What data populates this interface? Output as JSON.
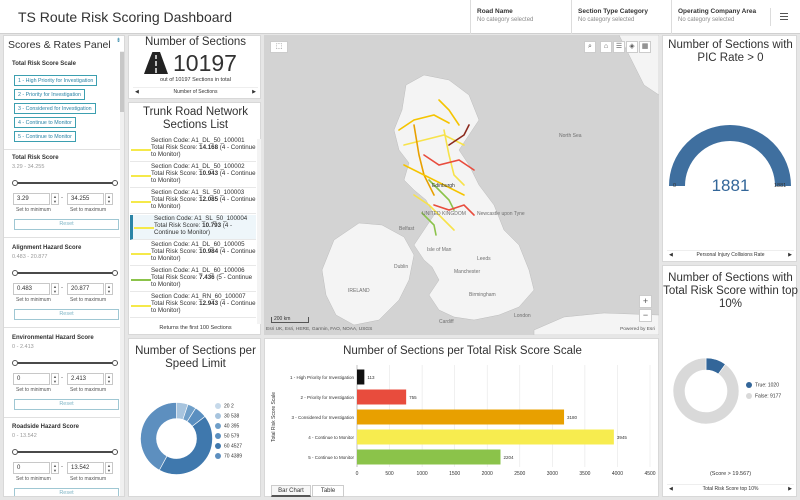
{
  "header": {
    "title": "TS Route Risk Scoring Dashboard",
    "filters": [
      {
        "label": "Road Name",
        "value": "No category selected"
      },
      {
        "label": "Section Type Category",
        "value": "No category selected"
      },
      {
        "label": "Operating Company Area",
        "value": "No category selected"
      }
    ],
    "menu_icon": "hamburger-icon"
  },
  "left_panel": {
    "title": "Scores & Rates Panel",
    "risk_scale": {
      "title": "Total Risk Score Scale",
      "buttons": [
        "1 - High Priority for Investigation",
        "2 - Priority for Investigation",
        "3 - Considered for Investigation",
        "4 - Continue to Monitor",
        "5 - Continue to Monitor"
      ]
    },
    "sliders": [
      {
        "title": "Total Risk Score",
        "range": "3.29 - 34.255",
        "min": "3.29",
        "max": "34.255",
        "set_min": "Set to minimum",
        "set_max": "Set to maximum",
        "reset": "Reset"
      },
      {
        "title": "Alignment Hazard Score",
        "range": "0.483 - 20.877",
        "min": "0.483",
        "max": "20.877",
        "set_min": "Set to minimum",
        "set_max": "Set to maximum",
        "reset": "Reset"
      },
      {
        "title": "Environmental Hazard Score",
        "range": "0 - 2.413",
        "min": "0",
        "max": "2.413",
        "set_min": "Set to minimum",
        "set_max": "Set to maximum",
        "reset": "Reset"
      },
      {
        "title": "Roadside Hazard Score",
        "range": "0 - 13.542",
        "min": "0",
        "max": "13.542",
        "set_min": "Set to minimum",
        "set_max": "Set to maximum",
        "reset": "Reset"
      }
    ]
  },
  "number_indicator": {
    "title": "Number of Sections",
    "value": "10197",
    "subtitle": "out of 10197 Sections in total",
    "nav_label": "Number of Sections"
  },
  "sections_list": {
    "title": "Trunk Road Network Sections List",
    "items": [
      {
        "line1": "Section Code: A1_DL_50_100001",
        "line2a": "Total Risk Score: ",
        "score": "14.168",
        "line2b": " (4 - Continue to Monitor)",
        "color": "#f5e94a"
      },
      {
        "line1": "Section Code: A1_DL_50_100002",
        "line2a": "Total Risk Score: ",
        "score": "10.943",
        "line2b": " (4 - Continue to Monitor)",
        "color": "#f5e94a"
      },
      {
        "line1": "Section Code: A1_SL_50_100003",
        "line2a": "Total Risk Score: ",
        "score": "12.085",
        "line2b": " (4 - Continue to Monitor)",
        "color": "#f5e94a"
      },
      {
        "line1": "Section Code: A1_SL_50_100004",
        "line2a": "Total Risk Score: ",
        "score": "10.793",
        "line2b": " (4 - Continue to Monitor)",
        "color": "#f5e94a"
      },
      {
        "line1": "Section Code: A1_DL_60_100005",
        "line2a": "Total Risk Score: ",
        "score": "10.984",
        "line2b": " (4 - Continue to Monitor)",
        "color": "#f5e94a"
      },
      {
        "line1": "Section Code: A1_DL_60_100006",
        "line2a": "Total Risk Score: ",
        "score": "7.436",
        "line2b": " (5 - Continue to Monitor)",
        "color": "#8bc34a"
      },
      {
        "line1": "Section Code: A1_RN_60_100007",
        "line2a": "Total Risk Score: ",
        "score": "12.943",
        "line2b": " (4 - Continue to Monitor)",
        "color": "#f5e94a"
      }
    ],
    "footer": "Returns the first 100 Sections"
  },
  "map": {
    "labels": [
      "Edinburgh",
      "UNITED KINGDOM",
      "Newcastle upon Tyne",
      "Belfast",
      "Dublin",
      "Leeds",
      "Manchester",
      "Birmingham",
      "London",
      "Cardiff",
      "IRELAND",
      "North Sea",
      "Isle of Man"
    ],
    "scale": "200 km",
    "attribution": "Esri UK, Esri, HERE, Garmin, FAO, NOAA, USGS",
    "powered_by": "Powered by Esri",
    "zoom_in": "+",
    "zoom_out": "−"
  },
  "gauge": {
    "title": "Number of Sections with PIC Rate > 0",
    "value": "1881",
    "min": "0",
    "max": "1881",
    "nav_label": "Personal Injury Collisions Rate"
  },
  "top10": {
    "title": "Number of Sections with Total Risk Score within top 10%",
    "legend": [
      {
        "label": "True: 1020",
        "color": "#336699"
      },
      {
        "label": "False: 9177",
        "color": "#d9d9d9"
      }
    ],
    "subtitle": "(Score > 19.567)",
    "nav_label": "Total Risk Score top 10%"
  },
  "speed": {
    "title": "Number of Sections per Speed Limit",
    "legend": [
      {
        "label": "20 2",
        "color": "#c6d9ea"
      },
      {
        "label": "30 538",
        "color": "#a7c4de"
      },
      {
        "label": "40 395",
        "color": "#6f9fc9"
      },
      {
        "label": "50 579",
        "color": "#5a8fc0"
      },
      {
        "label": "60 4527",
        "color": "#3f78ad"
      },
      {
        "label": "70 4389",
        "color": "#5d8fbf"
      }
    ]
  },
  "bar_chart": {
    "title": "Number of Sections per Total Risk Score Scale",
    "tabs": [
      "Bar Chart",
      "Table"
    ]
  },
  "chart_data": [
    {
      "type": "bar",
      "title": "Number of Sections per Total Risk Score Scale",
      "ylabel": "Total Risk Score Scale",
      "xlabel": "",
      "orientation": "horizontal",
      "categories": [
        "1 - High Priority for Investigation",
        "2 - Priority for Investigation",
        "3 - Considered for Investigation",
        "4 - Continue to Monitor",
        "5 - Continue to Monitor"
      ],
      "values": [
        113,
        755,
        3180,
        3945,
        2204
      ],
      "colors": [
        "#111111",
        "#e84c3d",
        "#e8a000",
        "#f7ec4f",
        "#8bc34a"
      ],
      "xlim": [
        0,
        4500
      ],
      "xticks": [
        "0",
        "500",
        "1000",
        "1500",
        "2000",
        "2500",
        "3000",
        "3500",
        "4000",
        "4500"
      ],
      "grid": true
    },
    {
      "type": "pie",
      "title": "Number of Sections per Speed Limit",
      "categories": [
        "20",
        "30",
        "40",
        "50",
        "60",
        "70"
      ],
      "values": [
        2,
        538,
        395,
        579,
        4527,
        4389
      ],
      "donut": true
    },
    {
      "type": "pie",
      "title": "Number of Sections with Total Risk Score within top 10%",
      "categories": [
        "True",
        "False"
      ],
      "values": [
        1020,
        9177
      ],
      "donut": true
    }
  ]
}
